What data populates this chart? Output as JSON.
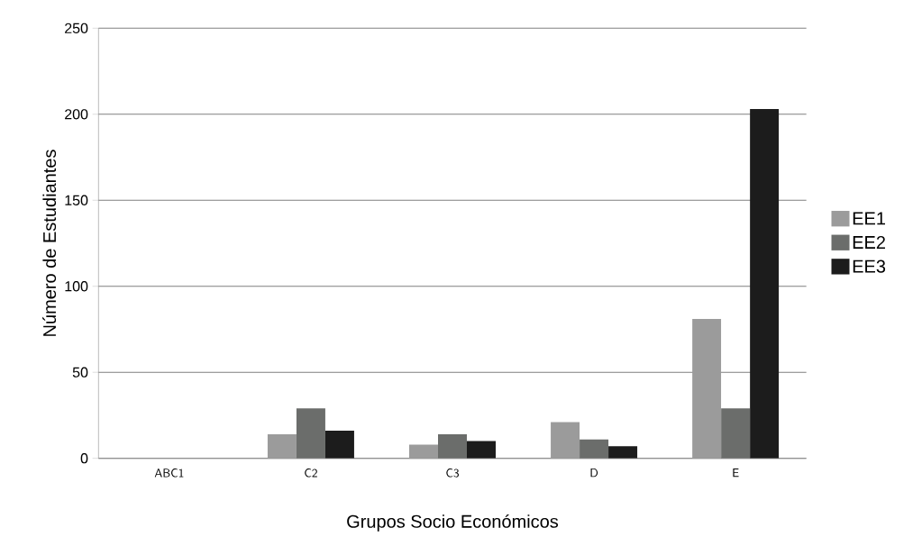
{
  "chart_data": {
    "type": "bar",
    "xlabel": "Grupos Socio Económicos",
    "ylabel": "Número de Estudiantes",
    "categories": [
      "ABC1",
      "C2",
      "C3",
      "D",
      "E"
    ],
    "series": [
      {
        "name": "EE1",
        "color": "#9b9b9b",
        "values": [
          0,
          14,
          8,
          21,
          81
        ]
      },
      {
        "name": "EE2",
        "color": "#6b6d6b",
        "values": [
          0,
          29,
          14,
          11,
          29
        ]
      },
      {
        "name": "EE3",
        "color": "#1c1c1c",
        "values": [
          0,
          16,
          10,
          7,
          203
        ]
      }
    ],
    "ylim": [
      0,
      250
    ],
    "yticks": [
      0,
      50,
      100,
      150,
      200,
      250
    ],
    "grid": "y",
    "legend": "right"
  }
}
